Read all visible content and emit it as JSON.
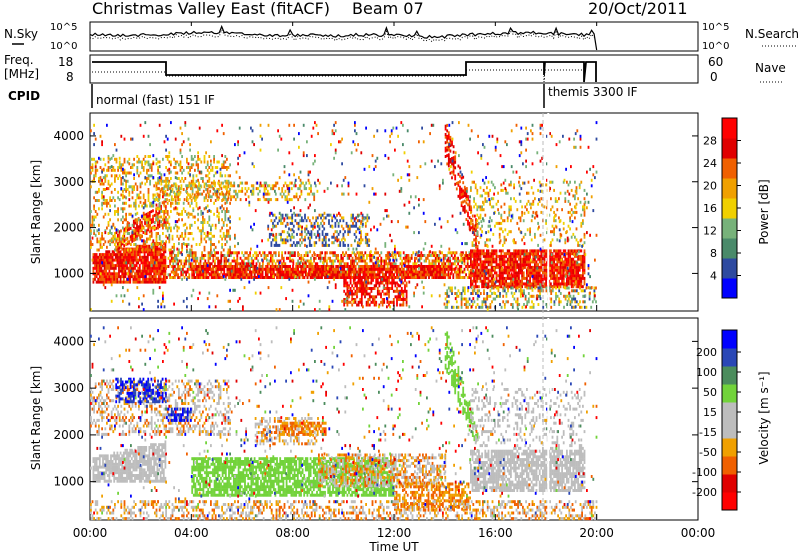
{
  "header": {
    "title": "Christmas Valley East (fitACF)",
    "beam": "Beam 07",
    "date": "20/Oct/2011"
  },
  "panels": {
    "nsky_label": "N.Sky",
    "nsearch_label": "N.Search",
    "freq_label_1": "Freq.",
    "freq_label_2": "[MHz]",
    "nave_label": "Nave",
    "cpid_label": "CPID",
    "cpid_mode_1": "normal (fast) 151 IF",
    "cpid_mode_2": "themis 3300 IF",
    "noise_ticks_left": [
      "10^5",
      "10^0"
    ],
    "noise_ticks_right": [
      "10^5",
      "10^0"
    ],
    "freq_ticks_left": [
      "18",
      "8"
    ],
    "freq_ticks_right": [
      "60",
      "0"
    ]
  },
  "colors": {
    "power_scale": [
      "#0000ff",
      "#2e4aa0",
      "#4a8a6a",
      "#77b27a",
      "#f0d000",
      "#f0a000",
      "#f06000",
      "#e00000",
      "#ff0000"
    ],
    "velocity_scale": [
      "#0000ff",
      "#2a47b6",
      "#4b8c5c",
      "#72d33a",
      "#bdbdbd",
      "#bdbdbd",
      "#f0a000",
      "#f06000",
      "#e00000",
      "#ff0000"
    ],
    "ground_scatter": "#bdbdbd"
  },
  "chart_data": [
    {
      "type": "heatmap",
      "name": "power",
      "ylabel": "Slant Range [km]",
      "xlabel": "Time UT",
      "x_ticks": [
        "00:00",
        "04:00",
        "08:00",
        "12:00",
        "16:00",
        "20:00",
        "00:00"
      ],
      "y_ticks": [
        "1000",
        "2000",
        "3000",
        "4000"
      ],
      "xlim_hours": [
        0,
        24
      ],
      "ylim_km": [
        180,
        4500
      ],
      "colorbar": {
        "label": "Power [dB]",
        "ticks": [
          "4",
          "8",
          "12",
          "16",
          "20",
          "24",
          "28"
        ]
      }
    },
    {
      "type": "heatmap",
      "name": "velocity",
      "ylabel": "Slant Range [km]",
      "xlabel": "Time UT",
      "x_ticks": [
        "00:00",
        "04:00",
        "08:00",
        "12:00",
        "16:00",
        "20:00",
        "00:00"
      ],
      "y_ticks": [
        "1000",
        "2000",
        "3000",
        "4000"
      ],
      "xlim_hours": [
        0,
        24
      ],
      "ylim_km": [
        180,
        4500
      ],
      "colorbar": {
        "label": "Velocity [m s⁻¹]",
        "ticks": [
          "200",
          "100",
          "50",
          "15",
          "-15",
          "-50",
          "-100",
          "-200"
        ]
      }
    }
  ]
}
